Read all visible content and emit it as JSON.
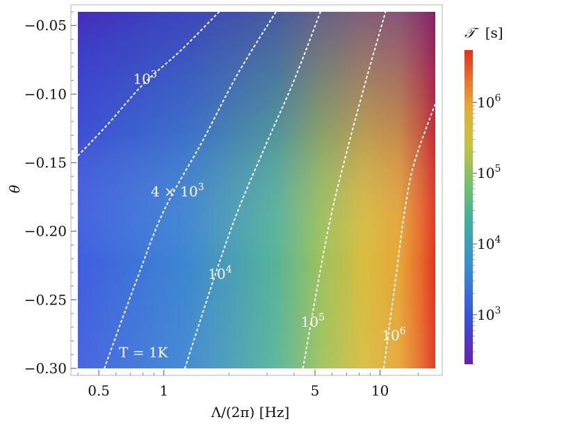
{
  "chart_data": {
    "type": "heatmap",
    "title": "",
    "xlabel": "Λ/(2π) [Hz]",
    "ylabel": "θ",
    "x_scale": "log",
    "xlim": [
      0.4,
      18
    ],
    "ylim": [
      -0.3,
      -0.04
    ],
    "x_ticks": [
      {
        "value": 0.5,
        "label": "0.5"
      },
      {
        "value": 1,
        "label": "1"
      },
      {
        "value": 5,
        "label": "5"
      },
      {
        "value": 10,
        "label": "10"
      }
    ],
    "y_ticks": [
      {
        "value": -0.05,
        "label": "−0.05"
      },
      {
        "value": -0.1,
        "label": "−0.10"
      },
      {
        "value": -0.15,
        "label": "−0.15"
      },
      {
        "value": -0.2,
        "label": "−0.20"
      },
      {
        "value": -0.25,
        "label": "−0.25"
      },
      {
        "value": -0.3,
        "label": "−0.30"
      }
    ],
    "colorbar": {
      "label_script": "𝒯",
      "label_unit": "[s]",
      "scale": "log",
      "range": [
        200,
        5500000
      ],
      "ticks": [
        {
          "value": 1000,
          "base": "10",
          "exp": "3"
        },
        {
          "value": 10000,
          "base": "10",
          "exp": "4"
        },
        {
          "value": 100000,
          "base": "10",
          "exp": "5"
        },
        {
          "value": 1000000,
          "base": "10",
          "exp": "6"
        }
      ],
      "colors": [
        "#6a1fa8",
        "#3a4fd8",
        "#3a8ad0",
        "#3fae9f",
        "#7bbf6a",
        "#c8c043",
        "#e3ab38",
        "#e66a2a",
        "#e0301f"
      ]
    },
    "contours": [
      {
        "level": 1000,
        "label_pre": "",
        "label_base": "10",
        "label_exp": "3",
        "points": [
          [
            0.4,
            -0.145
          ],
          [
            0.55,
            -0.122
          ],
          [
            0.8,
            -0.093
          ],
          [
            1.2,
            -0.068
          ],
          [
            1.8,
            -0.04
          ]
        ]
      },
      {
        "level": 4000,
        "label_pre": "4 × ",
        "label_base": "10",
        "label_exp": "3",
        "points": [
          [
            0.53,
            -0.3
          ],
          [
            0.75,
            -0.235
          ],
          [
            1.0,
            -0.185
          ],
          [
            1.5,
            -0.135
          ],
          [
            2.2,
            -0.085
          ],
          [
            3.3,
            -0.04
          ]
        ]
      },
      {
        "level": 10000,
        "label_pre": "",
        "label_base": "10",
        "label_exp": "4",
        "points": [
          [
            1.25,
            -0.3
          ],
          [
            1.7,
            -0.235
          ],
          [
            2.2,
            -0.185
          ],
          [
            3.0,
            -0.135
          ],
          [
            4.0,
            -0.09
          ],
          [
            5.3,
            -0.04
          ]
        ]
      },
      {
        "level": 100000,
        "label_pre": "",
        "label_base": "10",
        "label_exp": "5",
        "points": [
          [
            4.4,
            -0.3
          ],
          [
            5.2,
            -0.235
          ],
          [
            6.0,
            -0.185
          ],
          [
            7.2,
            -0.135
          ],
          [
            8.6,
            -0.09
          ],
          [
            10.6,
            -0.04
          ]
        ]
      },
      {
        "level": 1000000,
        "label_pre": "",
        "label_base": "10",
        "label_exp": "6",
        "points": [
          [
            10.4,
            -0.3
          ],
          [
            11.8,
            -0.235
          ],
          [
            13.0,
            -0.185
          ],
          [
            14.4,
            -0.15
          ],
          [
            18.0,
            -0.107
          ]
        ]
      }
    ],
    "annotation": {
      "text": "T = 1K",
      "x": 0.82,
      "y": -0.287
    }
  }
}
